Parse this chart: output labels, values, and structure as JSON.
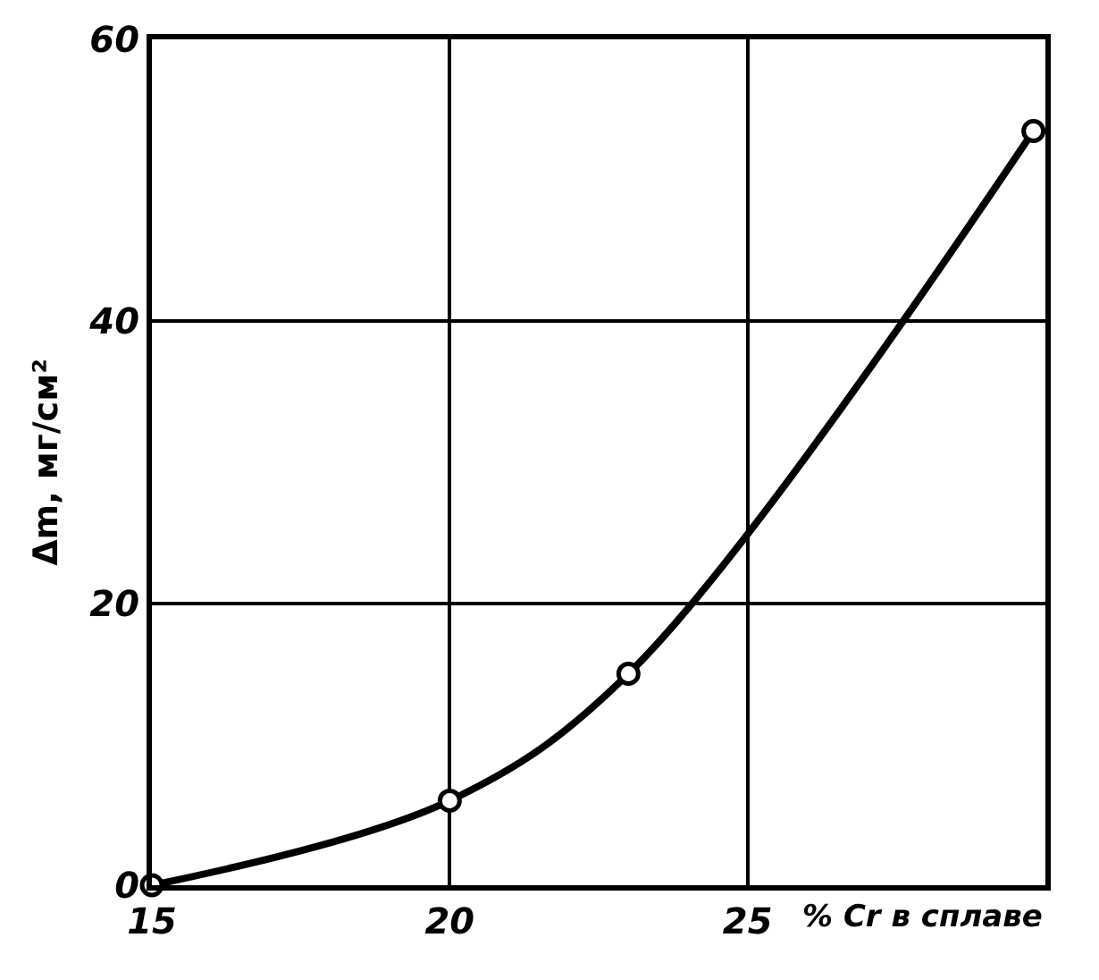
{
  "chart_data": {
    "type": "line",
    "xlabel": "% Cr в сплаве",
    "ylabel": "Δm, мг/см²",
    "x": [
      15,
      20,
      23,
      29.8
    ],
    "series": [
      {
        "color": "#000000",
        "values": [
          0,
          6,
          15,
          53.5
        ]
      }
    ],
    "xlim": [
      15,
      30
    ],
    "xticks": [
      15,
      20,
      25
    ],
    "ylim": [
      0,
      60
    ],
    "yticks": [
      0,
      20,
      40,
      60
    ],
    "grid": true,
    "marker": "circle",
    "line_style": "solid"
  }
}
